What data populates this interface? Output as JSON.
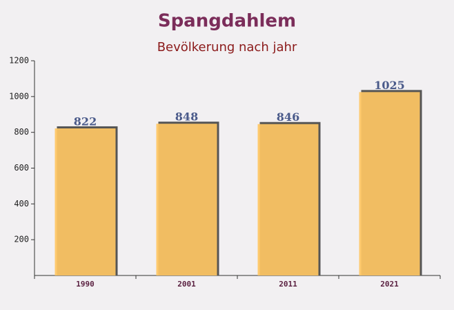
{
  "chart_data": {
    "type": "bar",
    "title": "Spangdahlem",
    "subtitle": "Bevölkerung nach jahr",
    "categories": [
      "1990",
      "2001",
      "2011",
      "2021"
    ],
    "values": [
      822,
      848,
      846,
      1025
    ],
    "color": "#ffc764",
    "ylim": [
      0,
      1200
    ],
    "yticks": [
      200,
      400,
      600,
      800,
      1000,
      1200
    ]
  }
}
